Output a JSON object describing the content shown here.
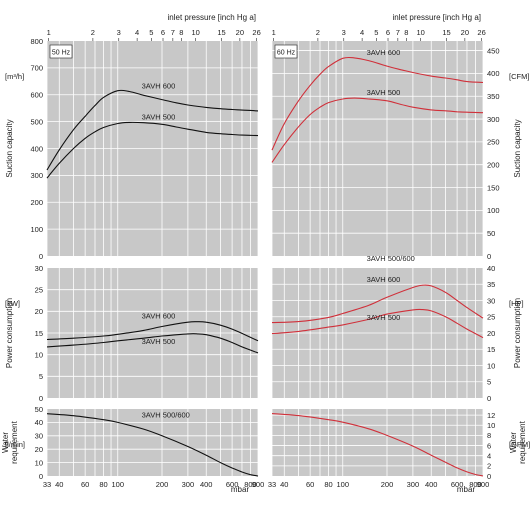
{
  "top_axis_label": "inlet pressure [inch Hg a]",
  "bottom_axis_unit": "mbar",
  "top_ticks": [
    {
      "v": 1,
      "label": "1"
    },
    {
      "v": 2,
      "label": "2"
    },
    {
      "v": 3,
      "label": "3"
    },
    {
      "v": 4,
      "label": "4"
    },
    {
      "v": 5,
      "label": "5"
    },
    {
      "v": 6,
      "label": "6"
    },
    {
      "v": 7,
      "label": "7"
    },
    {
      "v": 8,
      "label": "8"
    },
    {
      "v": 10,
      "label": "10"
    },
    {
      "v": 15,
      "label": "15"
    },
    {
      "v": 20,
      "label": "20"
    },
    {
      "v": 26,
      "label": "26"
    }
  ],
  "bottom_ticks": [
    {
      "v": 33,
      "label": "33"
    },
    {
      "v": 40,
      "label": "40"
    },
    {
      "v": 60,
      "label": "60"
    },
    {
      "v": 80,
      "label": "80"
    },
    {
      "v": 100,
      "label": "100"
    },
    {
      "v": 200,
      "label": "200"
    },
    {
      "v": 300,
      "label": "300"
    },
    {
      "v": 400,
      "label": "400"
    },
    {
      "v": 600,
      "label": "600"
    },
    {
      "v": 800,
      "label": "800"
    },
    {
      "v": 900,
      "label": "900"
    }
  ],
  "bottom_grid_values": [
    33,
    40,
    50,
    60,
    70,
    80,
    90,
    100,
    200,
    300,
    400,
    500,
    600,
    700,
    800,
    900
  ],
  "colors": {
    "panel_bg": "#c8c8c8",
    "grid": "#ffffff",
    "curve_50hz": "#111111",
    "curve_60hz": "#d0303a"
  },
  "chart_data": [
    {
      "type": "line",
      "title": "Suction capacity",
      "frequency_label": "50 Hz",
      "ylabel": "Suction capacity",
      "unit_left": "[m³/h]",
      "xlim": [
        33,
        900
      ],
      "x_scale": "log",
      "ylim": [
        0,
        800
      ],
      "yticks": [
        0,
        100,
        200,
        300,
        400,
        500,
        600,
        700,
        800
      ],
      "series": [
        {
          "name": "3AVH 600",
          "x": [
            33,
            40,
            50,
            60,
            70,
            80,
            100,
            120,
            150,
            200,
            250,
            300,
            400,
            500,
            600,
            700,
            900
          ],
          "y": [
            320,
            395,
            470,
            520,
            560,
            590,
            615,
            612,
            598,
            582,
            570,
            562,
            553,
            548,
            545,
            543,
            540
          ]
        },
        {
          "name": "3AVH 500",
          "x": [
            33,
            40,
            50,
            60,
            70,
            80,
            100,
            120,
            150,
            200,
            250,
            300,
            400,
            500,
            600,
            700,
            900
          ],
          "y": [
            290,
            345,
            400,
            438,
            462,
            478,
            493,
            497,
            496,
            490,
            480,
            472,
            460,
            455,
            452,
            450,
            448
          ]
        }
      ]
    },
    {
      "type": "line",
      "title": "Suction capacity",
      "frequency_label": "60 Hz",
      "ylabel": "Suction capacity",
      "unit_right": "[CFM]",
      "xlim": [
        33,
        900
      ],
      "x_scale": "log",
      "ylim": [
        0,
        471
      ],
      "yticks": [
        0,
        50,
        100,
        150,
        200,
        250,
        300,
        350,
        400,
        450
      ],
      "series": [
        {
          "name": "3AVH 600",
          "x": [
            33,
            40,
            50,
            60,
            70,
            80,
            100,
            120,
            150,
            200,
            250,
            300,
            400,
            500,
            600,
            700,
            900
          ],
          "y": [
            232,
            290,
            340,
            374,
            398,
            415,
            433,
            434,
            428,
            416,
            408,
            402,
            394,
            390,
            386,
            382,
            380
          ]
        },
        {
          "name": "3AVH 500",
          "x": [
            33,
            40,
            50,
            60,
            70,
            80,
            100,
            120,
            150,
            200,
            250,
            300,
            400,
            500,
            600,
            700,
            900
          ],
          "y": [
            205,
            244,
            283,
            310,
            326,
            336,
            344,
            346,
            344,
            340,
            332,
            326,
            320,
            318,
            316,
            315,
            314
          ]
        }
      ]
    },
    {
      "type": "line",
      "title": "Power consumption",
      "frequency_label": "",
      "ylabel": "Power consumption",
      "unit_left": "[kW]",
      "xlim": [
        33,
        900
      ],
      "x_scale": "log",
      "ylim": [
        0,
        30
      ],
      "yticks": [
        0,
        5,
        10,
        15,
        20,
        25,
        30
      ],
      "series": [
        {
          "name": "3AVH 600",
          "x": [
            33,
            50,
            80,
            100,
            150,
            200,
            300,
            350,
            400,
            500,
            600,
            700,
            900
          ],
          "y": [
            13.5,
            13.8,
            14.3,
            14.7,
            15.6,
            16.5,
            17.5,
            17.6,
            17.5,
            16.8,
            15.9,
            14.9,
            13.2
          ]
        },
        {
          "name": "3AVH 500",
          "x": [
            33,
            50,
            80,
            100,
            150,
            200,
            300,
            350,
            400,
            500,
            600,
            700,
            900
          ],
          "y": [
            11.8,
            12.2,
            12.8,
            13.2,
            13.8,
            14.3,
            14.8,
            14.8,
            14.6,
            13.8,
            12.8,
            11.8,
            10.4
          ]
        }
      ]
    },
    {
      "type": "line",
      "title": "Power consumption",
      "frequency_label": "",
      "ylabel": "Power consumption",
      "unit_right": "[HP]",
      "xlim": [
        33,
        900
      ],
      "x_scale": "log",
      "ylim": [
        0,
        40
      ],
      "yticks": [
        0,
        5,
        10,
        15,
        20,
        25,
        30,
        35,
        40
      ],
      "series": [
        {
          "name": "3AVH 600",
          "x": [
            33,
            50,
            80,
            100,
            150,
            200,
            300,
            350,
            400,
            500,
            600,
            700,
            900
          ],
          "y": [
            23.2,
            23.5,
            24.8,
            26.0,
            28.5,
            31.0,
            34.0,
            34.7,
            34.5,
            32.5,
            30.0,
            27.8,
            24.6
          ]
        },
        {
          "name": "3AVH 500",
          "x": [
            33,
            50,
            80,
            100,
            150,
            200,
            300,
            350,
            400,
            500,
            600,
            700,
            900
          ],
          "y": [
            19.8,
            20.5,
            21.8,
            22.5,
            24.2,
            25.8,
            27.1,
            27.2,
            26.8,
            25.0,
            23.0,
            21.2,
            18.6
          ]
        }
      ]
    },
    {
      "type": "line",
      "title": "Water requirement",
      "frequency_label": "",
      "ylabel": "Water requirement",
      "unit_left": "[l/min]",
      "xlim": [
        33,
        900
      ],
      "x_scale": "log",
      "ylim": [
        0,
        50
      ],
      "yticks": [
        0,
        10,
        20,
        30,
        40,
        50
      ],
      "series": [
        {
          "name": "3AVH 500/600",
          "x": [
            33,
            50,
            80,
            100,
            150,
            200,
            300,
            400,
            500,
            600,
            700,
            800,
            900
          ],
          "y": [
            46.5,
            45.0,
            42.0,
            40.0,
            35.0,
            30.0,
            22.0,
            15.5,
            10.0,
            6.0,
            3.0,
            1.0,
            0
          ]
        }
      ]
    },
    {
      "type": "line",
      "title": "Water requirement",
      "frequency_label": "",
      "ylabel": "Water requirement",
      "unit_right": "[GPM]",
      "xlim": [
        33,
        900
      ],
      "x_scale": "log",
      "ylim": [
        0,
        13.2
      ],
      "yticks": [
        0,
        2,
        4,
        6,
        8,
        10,
        12
      ],
      "series": [
        {
          "name": "3AVH 500/600",
          "x": [
            33,
            50,
            80,
            100,
            150,
            200,
            300,
            400,
            500,
            600,
            700,
            800,
            900
          ],
          "y": [
            12.3,
            11.9,
            11.1,
            10.6,
            9.3,
            8.0,
            5.9,
            4.1,
            2.7,
            1.6,
            0.8,
            0.3,
            0
          ]
        }
      ]
    }
  ]
}
